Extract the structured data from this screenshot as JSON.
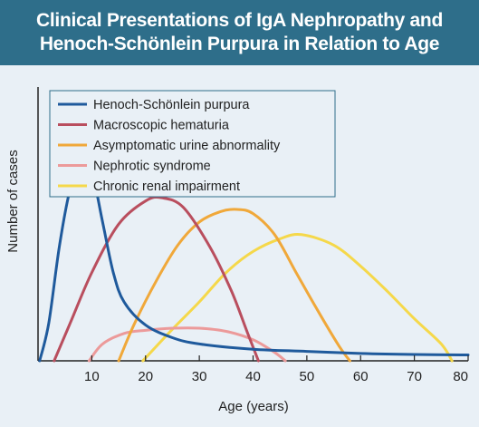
{
  "header": {
    "title_line1": "Clinical Presentations of IgA Nephropathy and",
    "title_line2": "Henoch-Schönlein Purpura in Relation to Age"
  },
  "colors": {
    "title_background": "#2e6e8a",
    "plot_background": "#e9f0f6"
  },
  "chart_data": {
    "type": "line",
    "title": "Clinical Presentations of IgA Nephropathy and Henoch-Schönlein Purpura in Relation to Age",
    "xlabel": "Age (years)",
    "ylabel": "Number of cases",
    "xlim": [
      0,
      80
    ],
    "ylim": [
      0,
      1
    ],
    "x_ticks": [
      10,
      20,
      30,
      40,
      50,
      60,
      70,
      80
    ],
    "y_ticks": [],
    "grid": false,
    "legend_position": "top-left",
    "series": [
      {
        "name": "Henoch-Schönlein purpura",
        "color": "#1f5a9c",
        "x": [
          0.3,
          2,
          4,
          6,
          8,
          10,
          12,
          14,
          16,
          20,
          25,
          30,
          40,
          50,
          60,
          70,
          80
        ],
        "y": [
          0.0,
          0.18,
          0.55,
          0.82,
          0.96,
          0.9,
          0.66,
          0.42,
          0.28,
          0.17,
          0.11,
          0.08,
          0.055,
          0.045,
          0.035,
          0.03,
          0.028
        ]
      },
      {
        "name": "Macroscopic hematuria",
        "color": "#b94e5e",
        "x": [
          3,
          6,
          10,
          15,
          20,
          23,
          27,
          32,
          36,
          39,
          41
        ],
        "y": [
          0.0,
          0.18,
          0.42,
          0.65,
          0.76,
          0.775,
          0.73,
          0.54,
          0.33,
          0.13,
          0.0
        ]
      },
      {
        "name": "Asymptomatic urine abnormality",
        "color": "#f0a83a",
        "x": [
          15,
          18,
          22,
          26,
          30,
          34,
          37,
          40,
          44,
          48,
          52,
          56,
          58
        ],
        "y": [
          0.0,
          0.18,
          0.38,
          0.55,
          0.66,
          0.71,
          0.72,
          0.7,
          0.6,
          0.42,
          0.24,
          0.07,
          0.0
        ]
      },
      {
        "name": "Nephrotic syndrome",
        "color": "#ec9a9a",
        "x": [
          9.5,
          12,
          16,
          20,
          25,
          30,
          35,
          40,
          44,
          46
        ],
        "y": [
          0.0,
          0.08,
          0.13,
          0.145,
          0.155,
          0.155,
          0.14,
          0.1,
          0.04,
          0.0
        ]
      },
      {
        "name": "Chronic renal impairment",
        "color": "#f5d84a",
        "x": [
          19.5,
          25,
          30,
          35,
          40,
          45,
          49,
          55,
          60,
          65,
          70,
          75,
          77
        ],
        "y": [
          0.0,
          0.15,
          0.28,
          0.42,
          0.52,
          0.58,
          0.6,
          0.55,
          0.45,
          0.33,
          0.2,
          0.08,
          0.0
        ]
      }
    ]
  }
}
